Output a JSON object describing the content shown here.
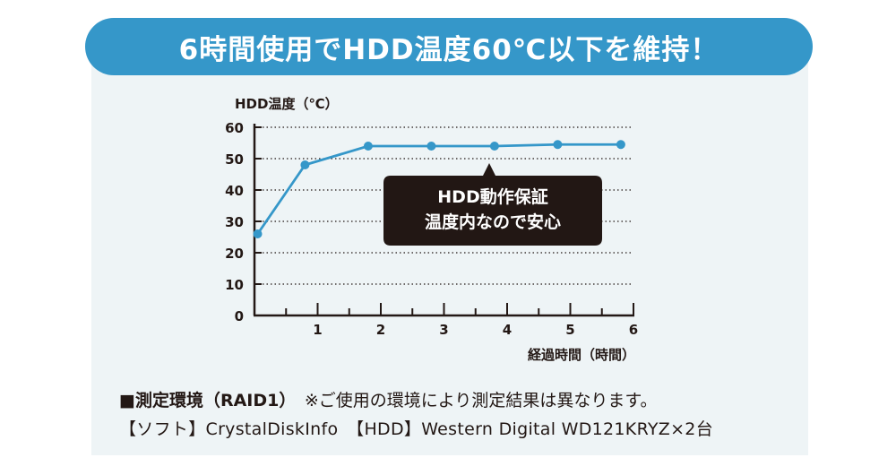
{
  "header": {
    "title": "6時間使用でHDD温度60℃以下を維持！"
  },
  "chart_data": {
    "type": "line",
    "ylabel": "HDD温度（℃）",
    "xlabel": "経過時間（時間）",
    "ylim": [
      0,
      60
    ],
    "xlim": [
      0,
      6
    ],
    "yticks": [
      "0",
      "10",
      "20",
      "30",
      "40",
      "50",
      "60"
    ],
    "xticks": [
      "1",
      "2",
      "3",
      "4",
      "5",
      "6"
    ],
    "grid": "horizontal dotted",
    "x": [
      0.05,
      0.8,
      1.8,
      2.8,
      3.8,
      4.8,
      5.8
    ],
    "series": [
      {
        "values": [
          26,
          48,
          54,
          54,
          54,
          54.5,
          54.5
        ]
      }
    ],
    "line_color": "#3597c9",
    "callout": {
      "lines": [
        "HDD動作保証",
        "温度内なので安心"
      ],
      "bg": "#221714"
    }
  },
  "notes": {
    "environment_lead": "■測定環境（RAID1）",
    "environment_text": "※ご使用の環境により測定結果は異なります。",
    "spec_line": "【ソフト】CrystalDiskInfo　【HDD】Western Digital WD121KRYZ×2台"
  }
}
